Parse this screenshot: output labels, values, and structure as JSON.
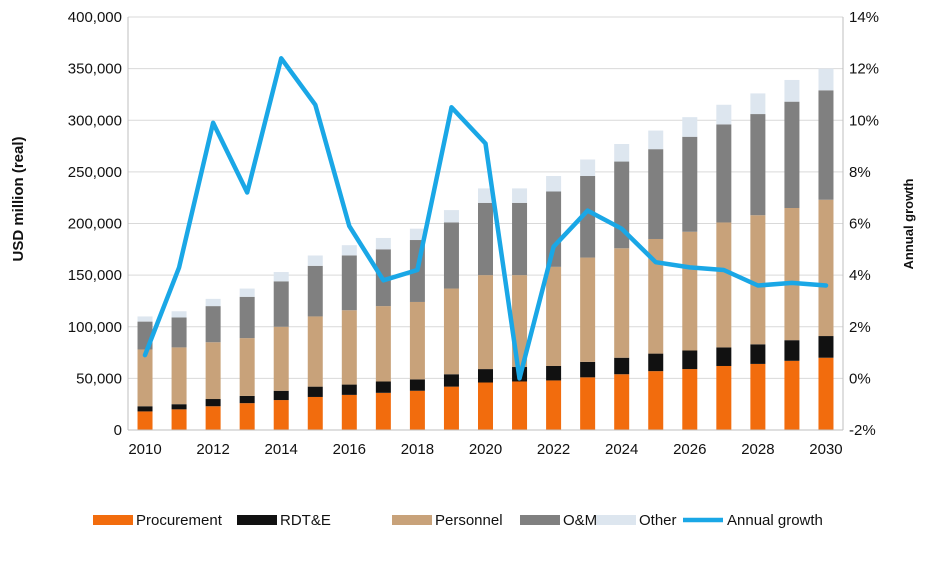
{
  "chart_data": {
    "type": "bar",
    "stacked": true,
    "categories": [
      "2010",
      "2011",
      "2012",
      "2013",
      "2014",
      "2015",
      "2016",
      "2017",
      "2018",
      "2019",
      "2020",
      "2021",
      "2022",
      "2023",
      "2024",
      "2025",
      "2026",
      "2027",
      "2028",
      "2029",
      "2030"
    ],
    "x_tick_labels": [
      "2010",
      "2012",
      "2014",
      "2016",
      "2018",
      "2020",
      "2022",
      "2024",
      "2026",
      "2028",
      "2030"
    ],
    "ylabel": "USD million (real)",
    "y2label": "Annual growth",
    "ylim": [
      0,
      400000
    ],
    "y_ticks": [
      "0",
      "50,000",
      "100,000",
      "150,000",
      "200,000",
      "250,000",
      "300,000",
      "350,000",
      "400,000"
    ],
    "y2lim": [
      -2,
      14
    ],
    "y2_ticks": [
      "-2%",
      "0%",
      "2%",
      "4%",
      "6%",
      "8%",
      "10%",
      "12%",
      "14%"
    ],
    "grid": "horizontal",
    "legend_position": "bottom",
    "series": [
      {
        "name": "Procurement",
        "color": "#f26c0d",
        "values": [
          18000,
          20000,
          23000,
          26000,
          29000,
          32000,
          34000,
          36000,
          38000,
          42000,
          46000,
          47000,
          48000,
          51000,
          54000,
          57000,
          59000,
          62000,
          64000,
          67000,
          70000
        ]
      },
      {
        "name": "RDT&E",
        "color": "#111111",
        "values": [
          5000,
          5000,
          7000,
          7000,
          9000,
          10000,
          10000,
          11000,
          11000,
          12000,
          13000,
          14000,
          14000,
          15000,
          16000,
          17000,
          18000,
          18000,
          19000,
          20000,
          21000
        ]
      },
      {
        "name": "Personnel",
        "color": "#c8a27a",
        "values": [
          55000,
          55000,
          55000,
          56000,
          62000,
          68000,
          72000,
          73000,
          75000,
          83000,
          91000,
          89000,
          96000,
          101000,
          106000,
          111000,
          115000,
          121000,
          125000,
          128000,
          132000
        ]
      },
      {
        "name": "O&M",
        "color": "#808080",
        "values": [
          27000,
          29000,
          35000,
          40000,
          44000,
          49000,
          53000,
          55000,
          60000,
          64000,
          70000,
          70000,
          73000,
          79000,
          84000,
          87000,
          92000,
          95000,
          98000,
          103000,
          106000
        ]
      },
      {
        "name": "Other",
        "color": "#dde6ef",
        "values": [
          5000,
          6000,
          7000,
          8000,
          9000,
          10000,
          10000,
          11000,
          11000,
          12000,
          14000,
          14000,
          15000,
          16000,
          17000,
          18000,
          19000,
          19000,
          20000,
          21000,
          21000
        ]
      }
    ],
    "line_series": {
      "name": "Annual growth",
      "color": "#1aa7e6",
      "axis": "right",
      "values": [
        0.9,
        4.3,
        9.9,
        7.2,
        12.4,
        10.6,
        5.9,
        3.8,
        4.2,
        10.5,
        9.1,
        0.0,
        5.1,
        6.5,
        5.8,
        4.5,
        4.3,
        4.2,
        3.6,
        3.7,
        3.6
      ]
    }
  }
}
